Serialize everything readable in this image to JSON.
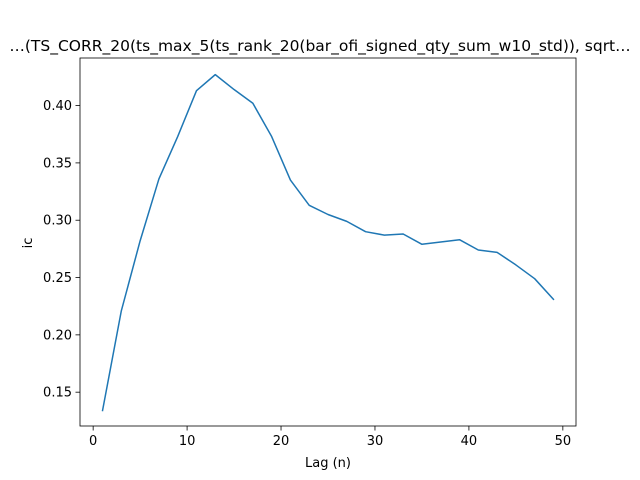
{
  "chart_data": {
    "type": "line",
    "title": "…(TS_CORR_20(ts_max_5(ts_rank_20(bar_ofi_signed_qty_sum_w10_std)), sqrt…",
    "xlabel": "Lag (n)",
    "ylabel": "ic",
    "xlim": [
      -1.4,
      51.4
    ],
    "ylim": [
      0.1205,
      0.4415
    ],
    "xticks": [
      0,
      10,
      20,
      30,
      40,
      50
    ],
    "yticks": [
      0.15,
      0.2,
      0.25,
      0.3,
      0.35,
      0.4
    ],
    "grid": false,
    "line_color": "#1f77b4",
    "series": [
      {
        "x": [
          1,
          3,
          5,
          7,
          9,
          11,
          13,
          15,
          17,
          19,
          21,
          23,
          25,
          27,
          29,
          31,
          33,
          35,
          37,
          39,
          41,
          43,
          45,
          47,
          49
        ],
        "values": [
          0.134,
          0.221,
          0.282,
          0.336,
          0.373,
          0.413,
          0.427,
          0.414,
          0.402,
          0.373,
          0.335,
          0.313,
          0.305,
          0.299,
          0.29,
          0.287,
          0.288,
          0.279,
          0.281,
          0.283,
          0.274,
          0.272,
          0.261,
          0.249,
          0.231
        ]
      }
    ]
  }
}
